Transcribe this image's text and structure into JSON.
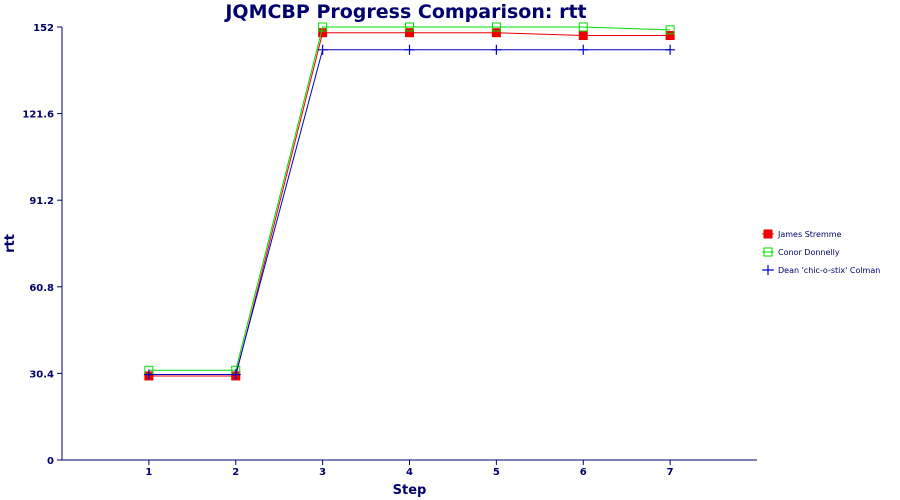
{
  "chart_data": {
    "type": "line",
    "title": "JQMCBP Progress Comparison: rtt",
    "xlabel": "Step",
    "ylabel": "rtt",
    "x": [
      1,
      2,
      3,
      4,
      5,
      6,
      7
    ],
    "x_ticks": [
      "1",
      "2",
      "3",
      "4",
      "5",
      "6",
      "7"
    ],
    "xlim": [
      0,
      8
    ],
    "ylim": [
      0,
      152
    ],
    "y_ticks": [
      "0",
      "30.4",
      "60.8",
      "91.2",
      "121.6",
      "152"
    ],
    "grid": false,
    "legend_position": "right",
    "series": [
      {
        "name": "James Stremme",
        "color": "#ee0000",
        "marker": "filled-square",
        "values": [
          29.5,
          29.5,
          150,
          150,
          150,
          149,
          149
        ]
      },
      {
        "name": "Conor Donnelly",
        "color": "#00dd00",
        "marker": "open-square",
        "values": [
          31.5,
          31.5,
          152,
          152,
          152,
          152,
          151
        ]
      },
      {
        "name": "Dean 'chic-o-stix' Colman",
        "color": "#0000cc",
        "marker": "plus",
        "values": [
          30,
          30,
          144,
          144,
          144,
          144,
          144
        ]
      }
    ]
  }
}
